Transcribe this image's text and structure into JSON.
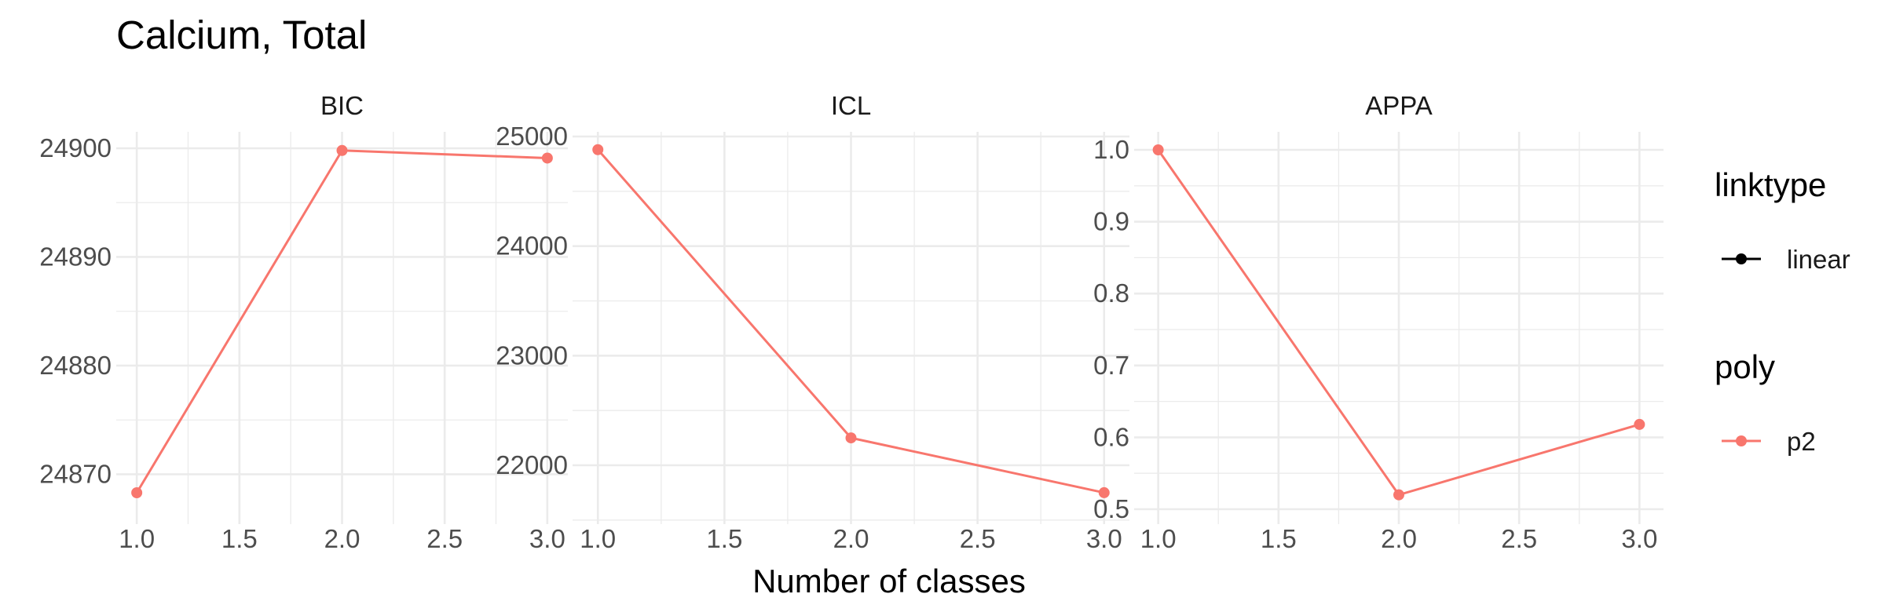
{
  "chart_data": {
    "type": "line",
    "title": "Calcium, Total",
    "xlabel": "Number of classes",
    "panels": [
      {
        "strip": "BIC",
        "xlim": [
          1.0,
          3.0
        ],
        "xticks": [
          "1.0",
          "1.5",
          "2.0",
          "2.5",
          "3.0"
        ],
        "ylim": [
          24868.3,
          24899.8
        ],
        "yticks": [
          "24870",
          "24880",
          "24890",
          "24900"
        ],
        "series": [
          {
            "x": [
              1,
              2,
              3
            ],
            "y": [
              24868.3,
              24899.8,
              24899.1
            ]
          }
        ]
      },
      {
        "strip": "ICL",
        "xlim": [
          1.0,
          3.0
        ],
        "xticks": [
          "1.0",
          "1.5",
          "2.0",
          "2.5",
          "3.0"
        ],
        "ylim": [
          21750,
          24880
        ],
        "yticks": [
          "22000",
          "23000",
          "24000",
          "25000"
        ],
        "series": [
          {
            "x": [
              1,
              2,
              3
            ],
            "y": [
              24880,
              22250,
              21750
            ]
          }
        ]
      },
      {
        "strip": "APPA",
        "xlim": [
          1.0,
          3.0
        ],
        "xticks": [
          "1.0",
          "1.5",
          "2.0",
          "2.5",
          "3.0"
        ],
        "ylim": [
          0.5,
          1.0
        ],
        "yticks": [
          "0.5",
          "0.6",
          "0.7",
          "0.8",
          "0.9",
          "1.0"
        ],
        "series": [
          {
            "x": [
              1,
              2,
              3
            ],
            "y": [
              1.0,
              0.52,
              0.618
            ]
          }
        ]
      }
    ],
    "legend": {
      "placement": "right",
      "groups": [
        {
          "title": "linktype",
          "key": "linear",
          "color": "#000000"
        },
        {
          "title": "poly",
          "key": "p2",
          "color": "#F8766D"
        }
      ]
    },
    "series_color": "#F8766D",
    "grid": true
  }
}
